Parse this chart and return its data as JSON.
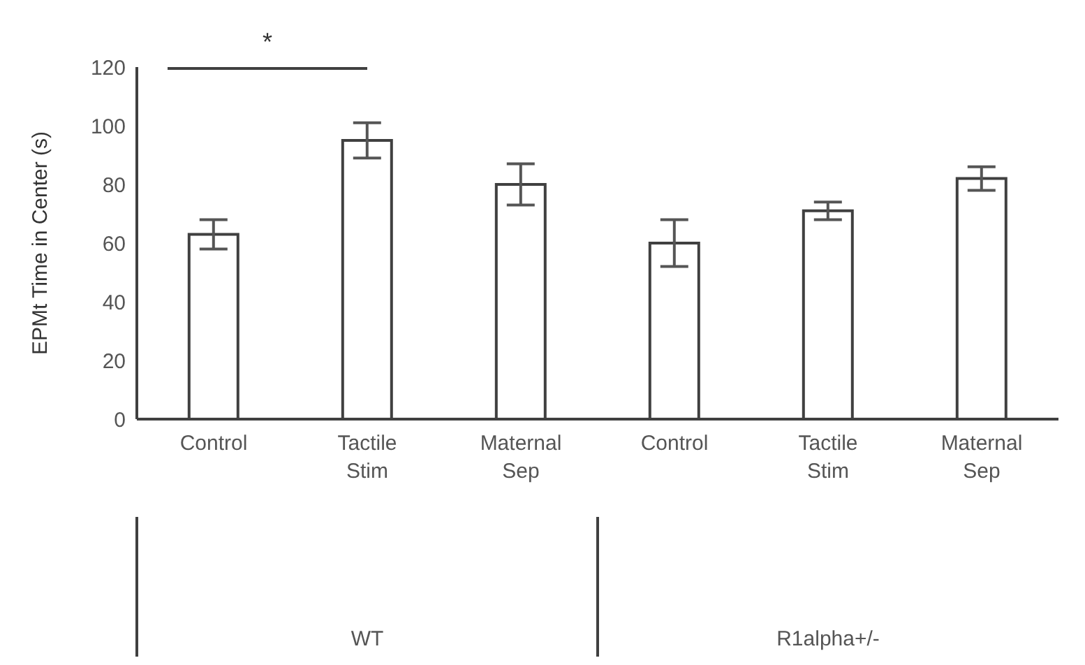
{
  "chart_data": {
    "type": "bar",
    "ylabel": "EPMt Time in Center (s)",
    "categories": [
      "Control",
      "Tactile Stim",
      "Maternal Sep",
      "Control",
      "Tactile Stim",
      "Maternal Sep"
    ],
    "series": [
      {
        "color": "#ffffff",
        "values": [
          63,
          95,
          80,
          60,
          71,
          82
        ],
        "errors": [
          5,
          6,
          7,
          8,
          3,
          4
        ]
      }
    ],
    "ylim": [
      0,
      120
    ],
    "yticks": [
      0,
      20,
      40,
      60,
      80,
      100,
      120
    ],
    "annotations": [
      "*",
      "WT",
      "R1alpha+/-"
    ]
  }
}
